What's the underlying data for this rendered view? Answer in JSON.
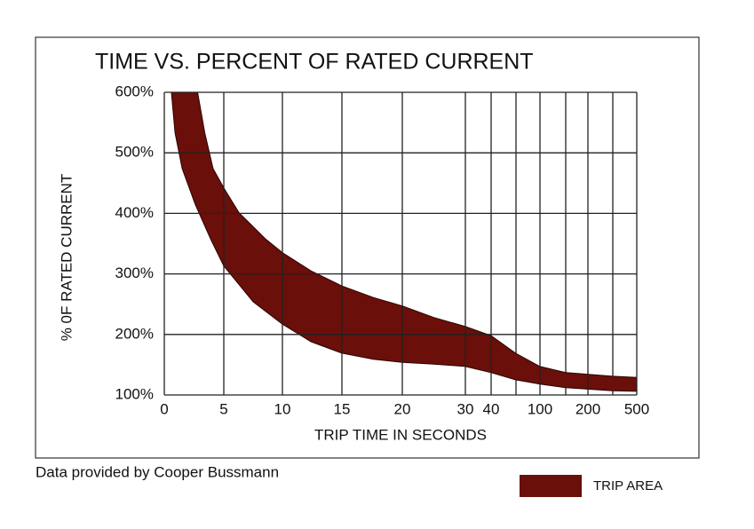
{
  "chart_data": {
    "type": "band",
    "title": "TIME VS. PERCENT OF RATED CURRENT",
    "x_label": "TRIP TIME IN SECONDS",
    "y_label": "% 0F RATED CURRENT",
    "note": "Data provided by Cooper Bussmann",
    "legend": "bottom-right",
    "grid": true,
    "ylim": [
      100,
      600
    ],
    "yticks": [
      {
        "value": 100,
        "label": "100%"
      },
      {
        "value": 200,
        "label": "200%"
      },
      {
        "value": 300,
        "label": "300%"
      },
      {
        "value": 400,
        "label": "400%"
      },
      {
        "value": 500,
        "label": "500%"
      },
      {
        "value": 600,
        "label": "600%"
      }
    ],
    "xlim": [
      0,
      500
    ],
    "xticks": [
      0,
      5,
      10,
      15,
      20,
      30,
      40,
      100,
      200,
      500
    ],
    "series": [
      {
        "name": "TRIP AREA",
        "color": "#6a0f0a",
        "x_upper": [
          2.8,
          3.4,
          4.1,
          5,
          6.3,
          8.6,
          10,
          12.4,
          15,
          17.6,
          20,
          25,
          30,
          40,
          70,
          100,
          154,
          350,
          500
        ],
        "values_upper": [
          600,
          533,
          474,
          442,
          401,
          357,
          335,
          305,
          280,
          261,
          247,
          228,
          213,
          198,
          169,
          147,
          137,
          131,
          129
        ],
        "x_lower": [
          0.6,
          0.9,
          1.5,
          2.6,
          3.9,
          5,
          7.5,
          10,
          12.4,
          15,
          17.6,
          20,
          25,
          30,
          40,
          70,
          100,
          154,
          350,
          500
        ],
        "values_lower": [
          600,
          533,
          474,
          415,
          357,
          313,
          254,
          217,
          188,
          169,
          159,
          154,
          151,
          147,
          137,
          125,
          118,
          112,
          107,
          106
        ]
      }
    ]
  }
}
